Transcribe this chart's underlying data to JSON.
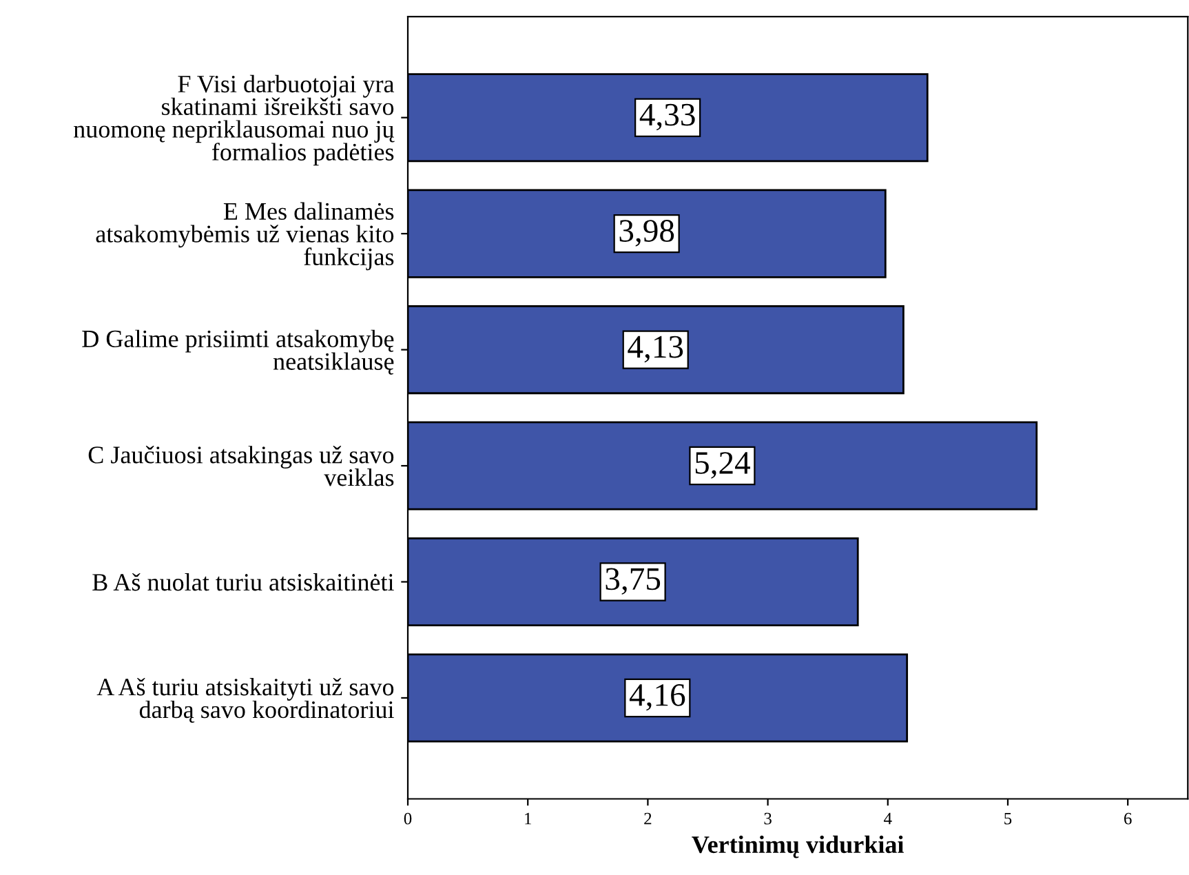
{
  "chart_data": {
    "type": "bar",
    "orientation": "horizontal",
    "categories": [
      "F Visi darbuotojai yra\nskatinami išreikšti savo\nnuomonę nepriklausomai nuo jų\nformalios padėties",
      "E Mes dalinamės\natsakomybėmis už vienas kito\nfunkcijas",
      "D Galime prisiimti atsakomybę\nneatsiklausę",
      "C Jaučiuosi atsakingas už savo\nveiklas",
      "B Aš nuolat turiu atsiskaitinėti",
      "A Aš turiu atsiskaityti už savo\ndarbą savo koordinatoriui"
    ],
    "values": [
      4.33,
      3.98,
      4.13,
      5.24,
      3.75,
      4.16
    ],
    "value_labels": [
      "4,33",
      "3,98",
      "4,13",
      "5,24",
      "3,75",
      "4,16"
    ],
    "color": "#3f55a8",
    "xlabel": "Vertinimų vidurkiai",
    "xlim": [
      0,
      6.5
    ],
    "xticks": [
      0,
      1,
      2,
      3,
      4,
      5,
      6
    ],
    "grid": false,
    "legend": false
  }
}
